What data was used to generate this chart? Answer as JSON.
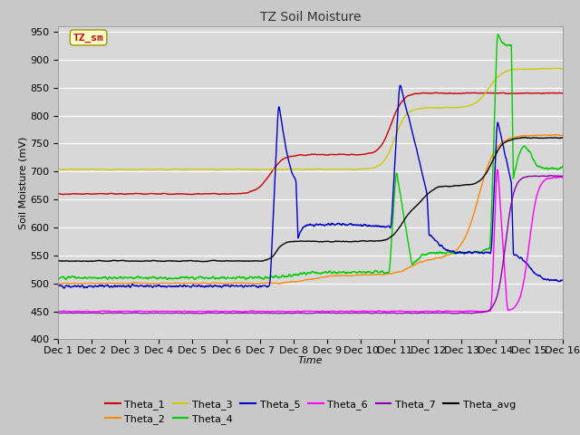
{
  "title": "TZ Soil Moisture",
  "xlabel": "Time",
  "ylabel": "Soil Moisture (mV)",
  "ylim": [
    400,
    960
  ],
  "yticks": [
    400,
    450,
    500,
    550,
    600,
    650,
    700,
    750,
    800,
    850,
    900,
    950
  ],
  "xtick_labels": [
    "Dec 1",
    "Dec 2",
    "Dec 3",
    "Dec 4",
    "Dec 5",
    "Dec 6",
    "Dec 7",
    "Dec 8",
    "Dec 9",
    "Dec 10",
    "Dec 11",
    "Dec 12",
    "Dec 13",
    "Dec 14",
    "Dec 15",
    "Dec 16"
  ],
  "fig_bg": "#c8c8c8",
  "plot_bg": "#d8d8d8",
  "legend_box_color": "#ffffcc",
  "legend_box_text": "TZ_sm",
  "line_colors": {
    "Theta_1": "#cc0000",
    "Theta_2": "#ff8800",
    "Theta_3": "#cccc00",
    "Theta_4": "#00cc00",
    "Theta_5": "#0000cc",
    "Theta_6": "#ff00ff",
    "Theta_7": "#8800aa",
    "Theta_avg": "#000000"
  }
}
